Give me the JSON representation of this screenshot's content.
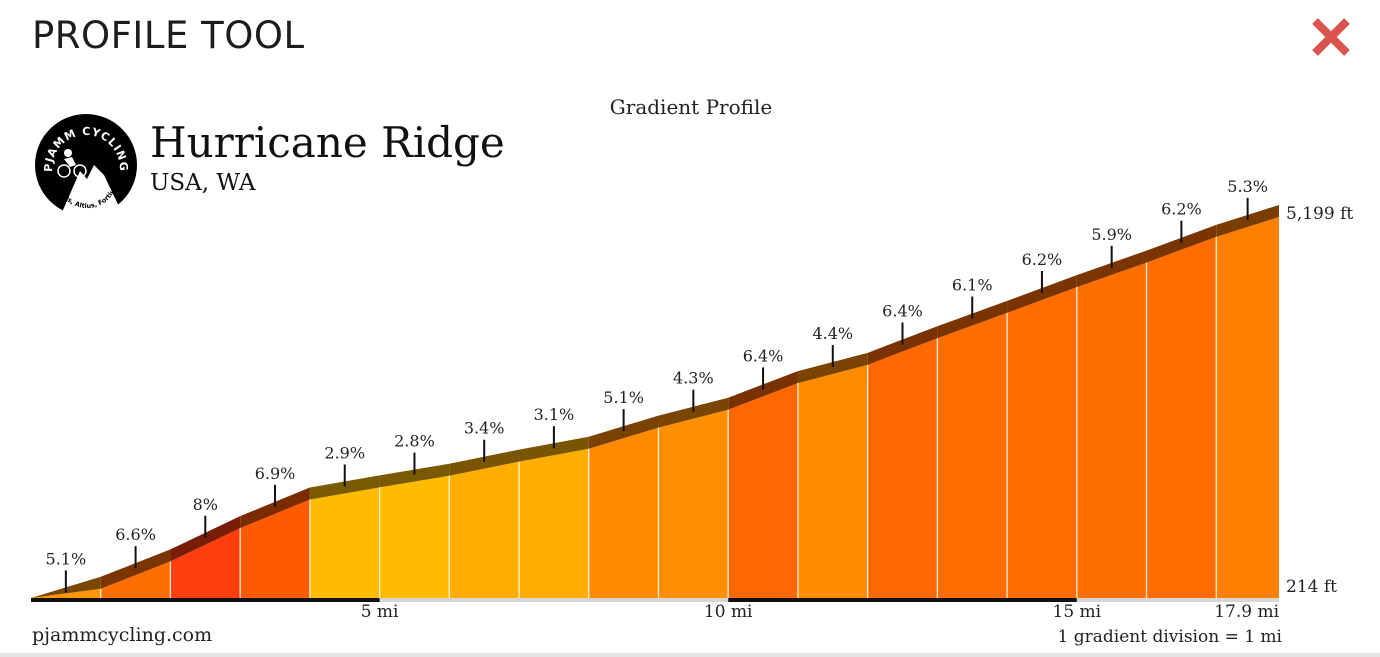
{
  "header": {
    "title": "PROFILE TOOL",
    "close_icon": "close-x-icon",
    "close_color": "#d9534f"
  },
  "logo": {
    "top_text": "PJAMM CYCLING",
    "bottom_text": "Citius, Altius, Fortius"
  },
  "route": {
    "name": "Hurricane Ridge",
    "location": "USA, WA"
  },
  "footer": {
    "site": "pjammcycling.com",
    "scale_note": "1 gradient division = 1 mi"
  },
  "chart_data": {
    "type": "area",
    "subtitle": "Gradient Profile",
    "x_unit": "mi",
    "y_unit": "ft",
    "xlim": [
      0,
      17.9
    ],
    "ylim": [
      214,
      5199
    ],
    "elevation_labels": [
      "214 ft",
      "5,199 ft"
    ],
    "x_tick_values": [
      5,
      10,
      15,
      17.9
    ],
    "x_tick_labels": [
      "5 mi",
      "10 mi",
      "15 mi",
      "17.9 mi"
    ],
    "segments": [
      {
        "start": 0,
        "end": 1,
        "grade": "5.1%",
        "color": "#ff9500"
      },
      {
        "start": 1,
        "end": 2,
        "grade": "6.6%",
        "color": "#ff6f00"
      },
      {
        "start": 2,
        "end": 3,
        "grade": "8%",
        "color": "#ff3d0d"
      },
      {
        "start": 3,
        "end": 4,
        "grade": "6.9%",
        "color": "#ff5a00"
      },
      {
        "start": 4,
        "end": 5,
        "grade": "2.9%",
        "color": "#ffbb00"
      },
      {
        "start": 5,
        "end": 6,
        "grade": "2.8%",
        "color": "#ffbb00"
      },
      {
        "start": 6,
        "end": 7,
        "grade": "3.4%",
        "color": "#ffae00"
      },
      {
        "start": 7,
        "end": 8,
        "grade": "3.1%",
        "color": "#ffae00"
      },
      {
        "start": 8,
        "end": 9,
        "grade": "5.1%",
        "color": "#ff8a00"
      },
      {
        "start": 9,
        "end": 10,
        "grade": "4.3%",
        "color": "#ff8f00"
      },
      {
        "start": 10,
        "end": 11,
        "grade": "6.4%",
        "color": "#ff6700"
      },
      {
        "start": 11,
        "end": 12,
        "grade": "4.4%",
        "color": "#ff8c00"
      },
      {
        "start": 12,
        "end": 13,
        "grade": "6.4%",
        "color": "#ff6900"
      },
      {
        "start": 13,
        "end": 14,
        "grade": "6.1%",
        "color": "#ff6c00"
      },
      {
        "start": 14,
        "end": 15,
        "grade": "6.2%",
        "color": "#ff6c00"
      },
      {
        "start": 15,
        "end": 16,
        "grade": "5.9%",
        "color": "#ff6e00"
      },
      {
        "start": 16,
        "end": 17,
        "grade": "6.2%",
        "color": "#ff6c00"
      },
      {
        "start": 17,
        "end": 17.9,
        "grade": "5.3%",
        "color": "#ff8000"
      }
    ]
  }
}
